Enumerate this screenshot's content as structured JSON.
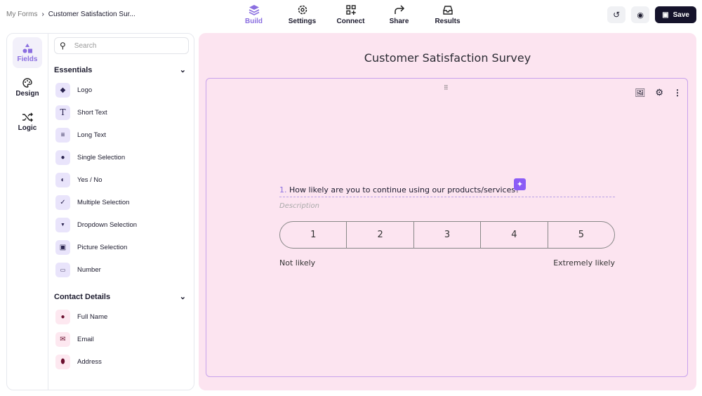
{
  "breadcrumb": {
    "root": "My Forms",
    "separator": "›",
    "current": "Customer Satisfaction Sur..."
  },
  "nav": {
    "tabs": [
      {
        "label": "Build",
        "icon": "layers-icon",
        "active": true
      },
      {
        "label": "Settings",
        "icon": "gear-icon"
      },
      {
        "label": "Connect",
        "icon": "apps-plus-icon"
      },
      {
        "label": "Share",
        "icon": "share-arrow-icon"
      },
      {
        "label": "Results",
        "icon": "inbox-icon"
      }
    ]
  },
  "actions": {
    "history_icon": "history-icon",
    "preview_icon": "eye-icon",
    "save_label": "Save"
  },
  "rail": [
    {
      "label": "Fields",
      "icon": "shapes-icon",
      "active": true
    },
    {
      "label": "Design",
      "icon": "palette-icon"
    },
    {
      "label": "Logic",
      "icon": "shuffle-icon"
    }
  ],
  "panel": {
    "search_placeholder": "Search",
    "sections": [
      {
        "title": "Essentials",
        "items": [
          "Logo",
          "Short Text",
          "Long Text",
          "Single Selection",
          "Yes / No",
          "Multiple Selection",
          "Dropdown Selection",
          "Picture Selection",
          "Number"
        ]
      },
      {
        "title": "Contact Details",
        "items": [
          "Full Name",
          "Email",
          "Address"
        ]
      }
    ]
  },
  "form": {
    "title": "Customer Satisfaction Survey",
    "question_number": "1.",
    "question": "How likely are you to continue using our products/services?",
    "description_placeholder": "Description",
    "scale": [
      "1",
      "2",
      "3",
      "4",
      "5"
    ],
    "min_label": "Not likely",
    "max_label": "Extremely likely"
  },
  "colors": {
    "accent": "#8b6fe0",
    "canvas": "#fce4f0",
    "save": "#15132b"
  }
}
